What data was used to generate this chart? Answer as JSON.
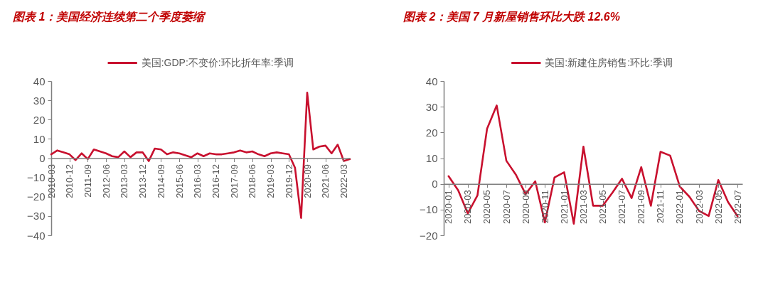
{
  "chart_data": [
    {
      "type": "line",
      "title": "图表 1：美国经济连续第二个季度萎缩",
      "legend": "top",
      "grid": false,
      "categories": [
        "2010-03",
        null,
        null,
        "2010-12",
        null,
        null,
        "2011-09",
        null,
        null,
        "2012-06",
        null,
        null,
        "2013-03",
        null,
        null,
        "2013-12",
        null,
        null,
        "2014-09",
        null,
        null,
        "2015-06",
        null,
        null,
        "2016-03",
        null,
        null,
        "2016-12",
        null,
        null,
        "2017-09",
        null,
        null,
        "2018-06",
        null,
        null,
        "2019-03",
        null,
        null,
        "2019-12",
        null,
        null,
        "2020-09",
        null,
        null,
        "2021-06",
        null,
        null,
        "2022-03",
        null
      ],
      "series": [
        {
          "name": "美国:GDP:不变价:环比折年率:季调",
          "color": "#c8102e",
          "values": [
            2,
            4,
            3,
            2,
            -1,
            2.5,
            -0.5,
            4.5,
            3.5,
            2.5,
            1,
            0.5,
            3.5,
            0.5,
            3,
            3,
            -1.5,
            5,
            4.5,
            2,
            3,
            2.5,
            1.5,
            0.5,
            2.5,
            1,
            2.5,
            2,
            2,
            2.5,
            3,
            4,
            3,
            3.5,
            2,
            1,
            2.5,
            3,
            2.5,
            2,
            -5,
            -31,
            34,
            4.5,
            6,
            6.5,
            2.5,
            7,
            -1.5,
            -0.5
          ]
        }
      ],
      "ylim": [
        -40,
        40
      ],
      "yticks": [
        -40,
        -30,
        -20,
        -10,
        0,
        10,
        20,
        30,
        40
      ]
    },
    {
      "type": "line",
      "title": "图表 2：美国 7 月新屋销售环比大跌 12.6%",
      "legend": "top",
      "grid": false,
      "categories": [
        "2020-01",
        null,
        "2020-03",
        null,
        "2020-05",
        null,
        "2020-07",
        null,
        "2020-09",
        null,
        "2020-11",
        null,
        "2021-01",
        null,
        "2021-03",
        null,
        "2021-05",
        null,
        "2021-07",
        null,
        "2021-09",
        null,
        "2021-11",
        null,
        "2022-01",
        null,
        "2022-03",
        null,
        "2022-05",
        null,
        "2022-07"
      ],
      "series": [
        {
          "name": "美国:新建住房销售:环比:季调",
          "color": "#c8102e",
          "values": [
            3,
            -2.5,
            -11.5,
            -4.5,
            21.5,
            30.5,
            9,
            3.5,
            -4,
            1,
            -15,
            2.5,
            4.5,
            -15.5,
            14.5,
            -8.5,
            -8.5,
            -3.5,
            2,
            -5.5,
            6.5,
            -8.5,
            12.5,
            11,
            -1,
            -5,
            -10.5,
            -12.5,
            1.5,
            -7,
            -12.6
          ]
        }
      ],
      "ylim": [
        -20,
        40
      ],
      "yticks": [
        -20,
        -10,
        0,
        10,
        20,
        30,
        40
      ]
    }
  ]
}
